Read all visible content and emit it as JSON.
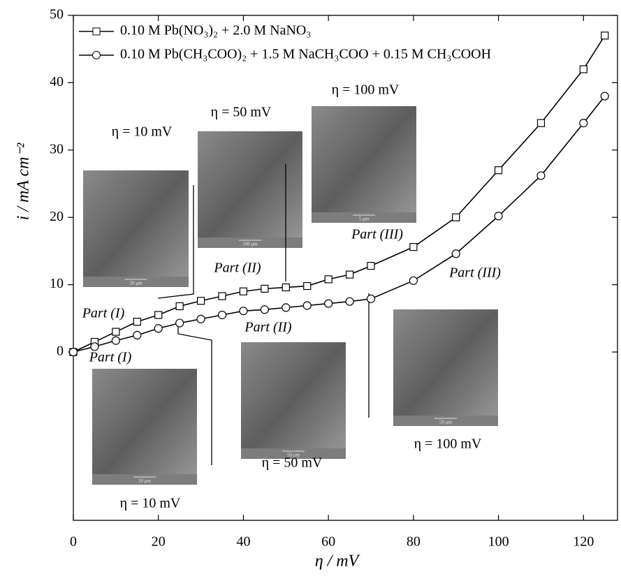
{
  "chart_data": {
    "type": "line",
    "x_label": "η / mV",
    "y_label": "i / mA cm⁻²",
    "x": [
      0,
      5,
      10,
      15,
      20,
      25,
      30,
      35,
      40,
      45,
      50,
      55,
      60,
      65,
      70,
      80,
      90,
      100,
      110,
      120,
      125
    ],
    "series": [
      {
        "name": "0.10 M Pb(NO₃)₂ + 2.0 M NaNO₃",
        "color": "#000000",
        "marker": "square",
        "values": [
          0,
          1.5,
          3,
          4.5,
          5.5,
          6.8,
          7.6,
          8.3,
          9,
          9.4,
          9.6,
          9.8,
          10.8,
          11.5,
          12.8,
          15.6,
          20,
          27,
          34,
          42,
          47
        ]
      },
      {
        "name": "0.10 M Pb(CH₃COO)₂ + 1.5 M NaCH₃COO + 0.15 M CH₃COOH",
        "color": "#000000",
        "marker": "circle",
        "values": [
          0,
          0.8,
          1.7,
          2.5,
          3.5,
          4.3,
          4.9,
          5.5,
          6.1,
          6.3,
          6.6,
          6.9,
          7.2,
          7.5,
          7.9,
          10.6,
          14.6,
          20.2,
          26.2,
          34,
          38
        ]
      }
    ],
    "xlim": [
      0,
      128
    ],
    "ylim": [
      -25,
      50
    ],
    "xticks": [
      0,
      20,
      40,
      60,
      80,
      100,
      120
    ],
    "yticks": [
      0,
      10,
      20,
      30,
      40,
      50
    ],
    "annotations": [
      "η = 10 mV",
      "η = 50 mV",
      "η = 100 mV",
      "Part (I)",
      "Part (II)",
      "Part (III)",
      "Part (I)",
      "Part (II)",
      "Part (III)",
      "η = 100 mV",
      "η = 50 mV",
      "η = 10 mV",
      "20 μm",
      "100 μm",
      "5 μm",
      "10 μm",
      "50 μm",
      "50 μm"
    ]
  }
}
